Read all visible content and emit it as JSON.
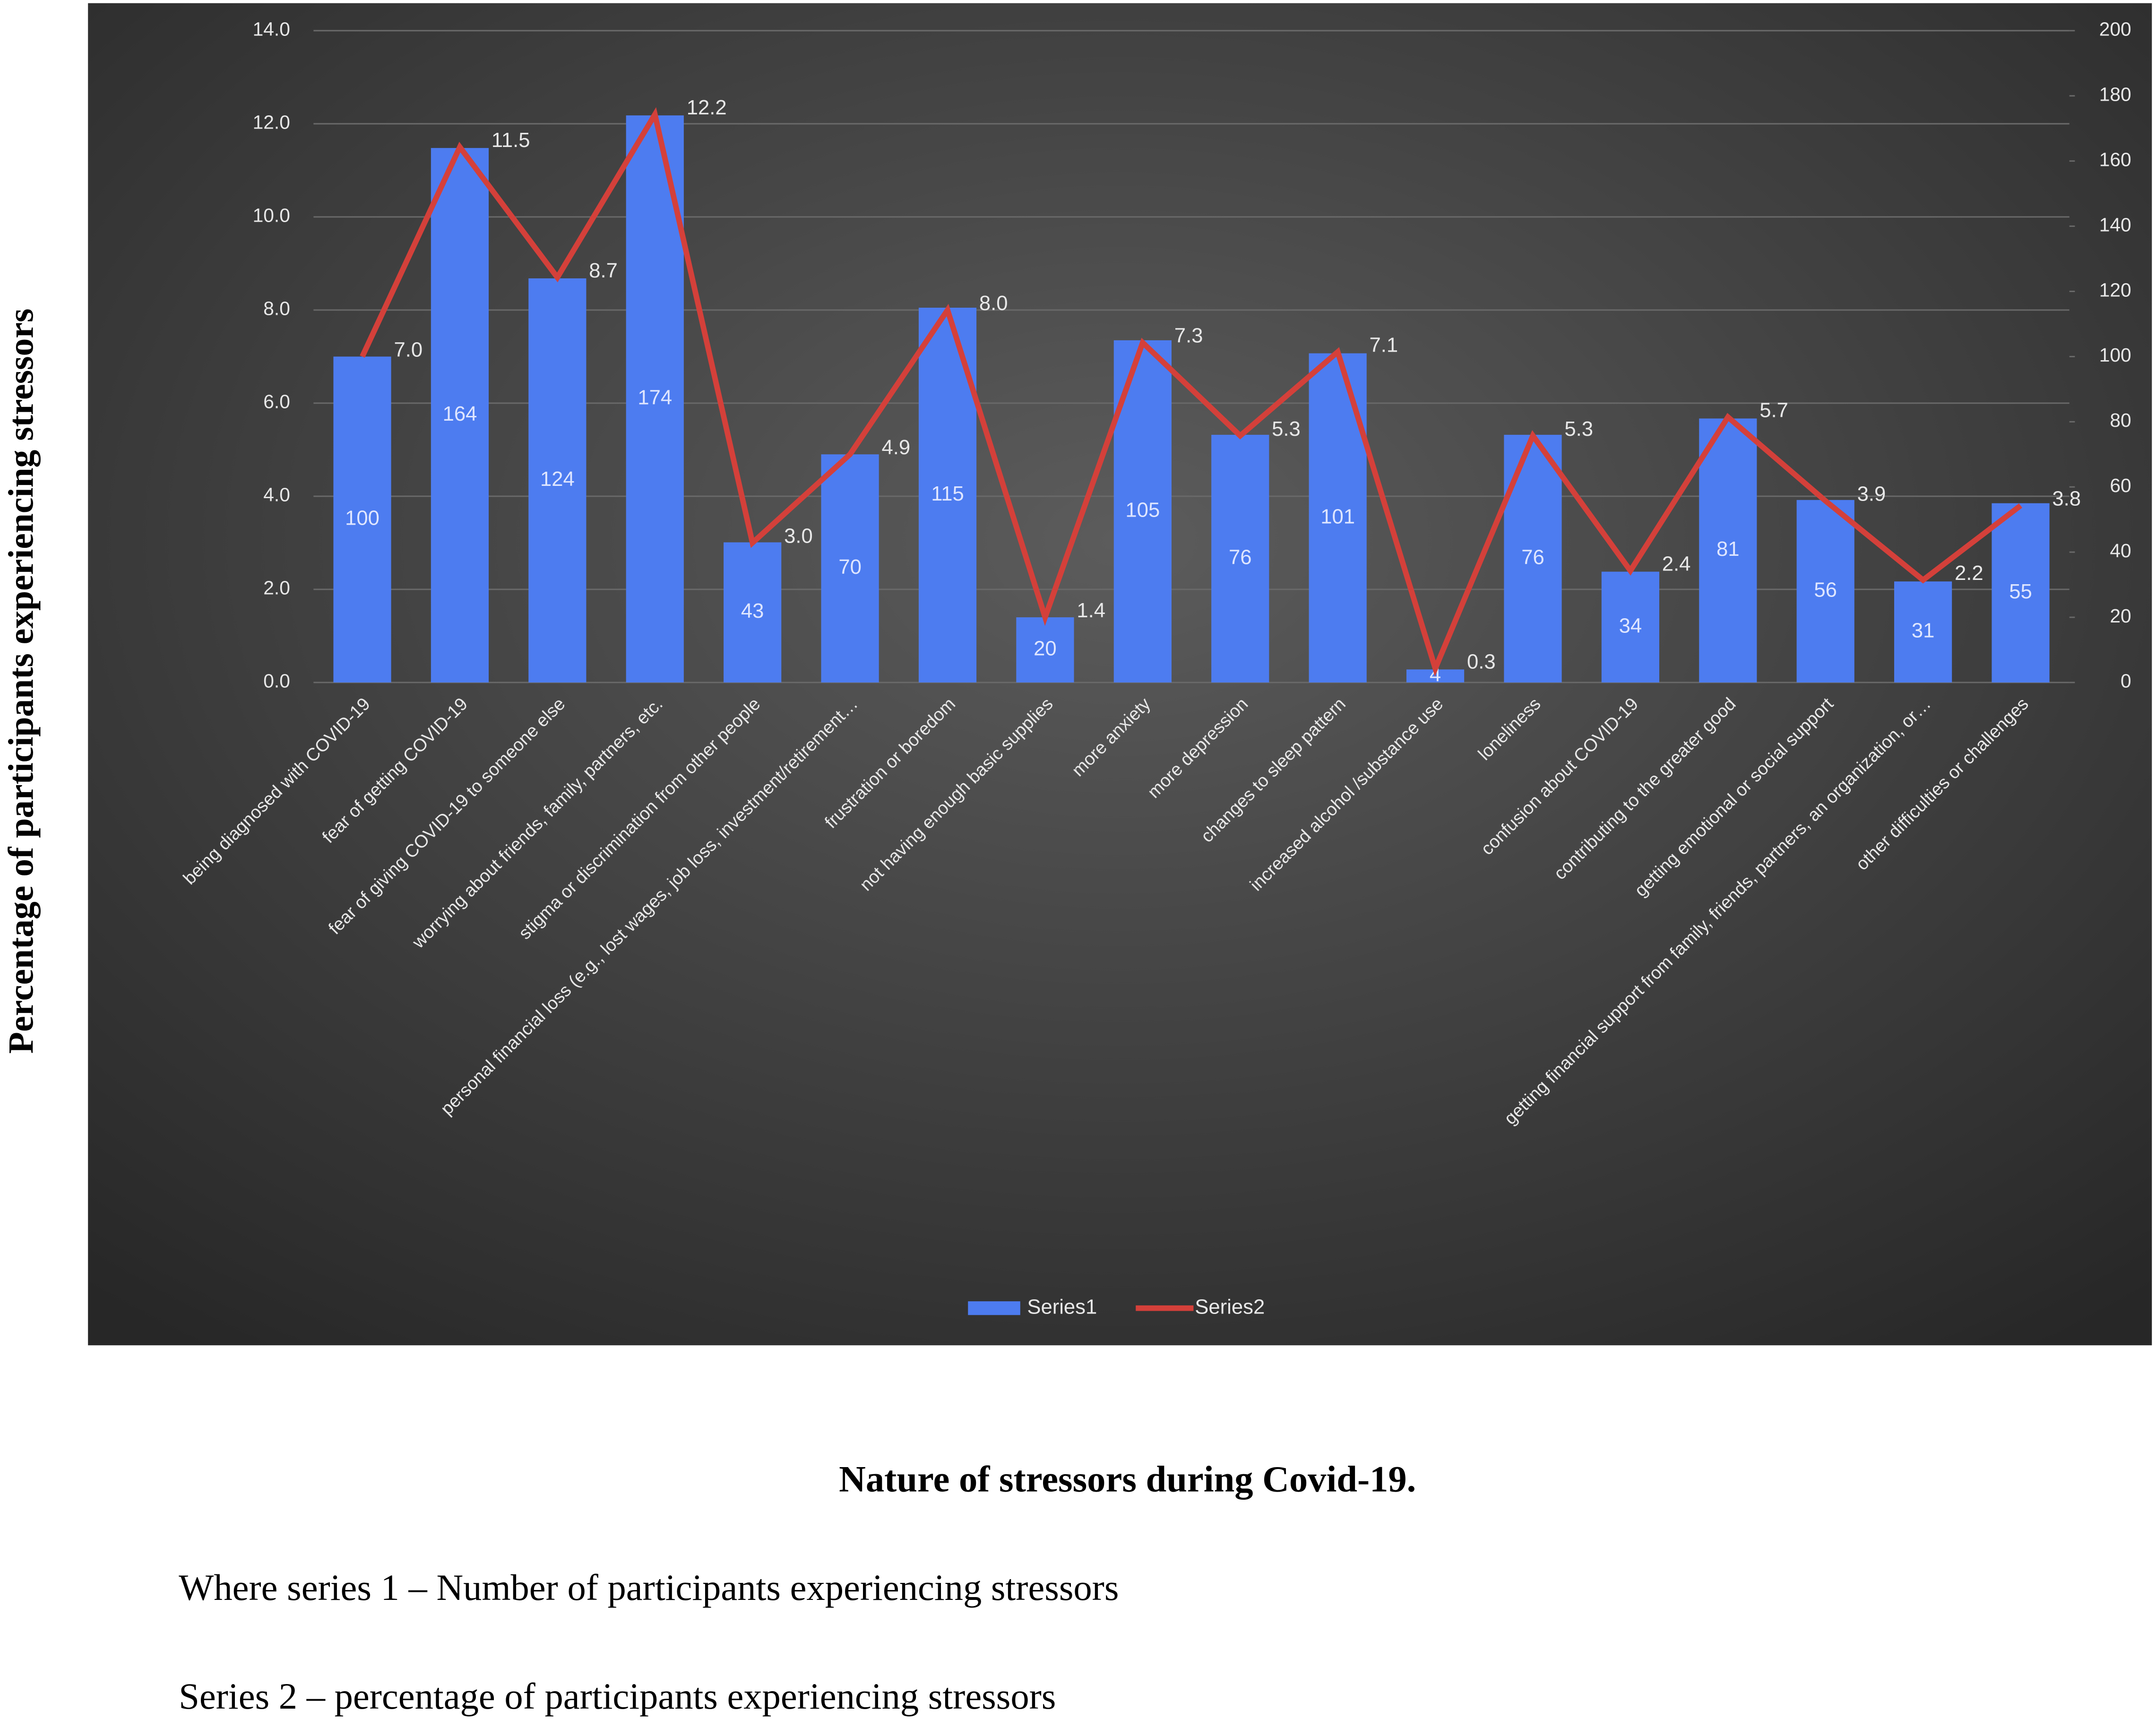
{
  "chart_data": {
    "type": "bar",
    "y_label": "Percentage of participants experiencing stressors",
    "caption": "Nature of stressors during Covid-19.",
    "notes": [
      "Where series 1 – Number of participants experiencing stressors",
      "Series 2 – percentage of participants experiencing stressors"
    ],
    "categories": [
      "being diagnosed with COVID-19",
      "fear of getting COVID-19",
      "fear of giving COVID-19 to someone else",
      "worrying about friends, family, partners, etc.",
      "stigma or discrimination from other people",
      "personal financial loss (e.g., lost wages, job loss, investment/retirement…",
      "frustration or boredom",
      "not having enough basic supplies",
      "more anxiety",
      "more depression",
      "changes to  sleep pattern",
      "increased alcohol /substance use",
      "loneliness",
      "confusion about  COVID-19",
      "contributing to the greater good",
      "getting emotional or social support",
      "getting financial support from family, friends, partners, an organization, or…",
      "other difficulties or challenges"
    ],
    "series": [
      {
        "name": "Series1",
        "type": "bar",
        "axis": "y2",
        "color": "#4d7cf0",
        "values": [
          100,
          164,
          124,
          174,
          43,
          70,
          115,
          20,
          105,
          76,
          101,
          4,
          76,
          34,
          81,
          56,
          31,
          55
        ]
      },
      {
        "name": "Series2",
        "type": "line",
        "color": "#d4403a",
        "values": [
          7.0,
          11.5,
          8.7,
          12.2,
          3.0,
          4.9,
          8.0,
          1.4,
          7.3,
          5.3,
          7.1,
          0.3,
          5.3,
          2.4,
          5.7,
          3.9,
          2.2,
          3.8
        ],
        "value_labels": [
          "7.0",
          "11.5",
          "8.7",
          "12.2",
          "3.0",
          "4.9",
          "8.0",
          "1.4",
          "7.3",
          "5.3",
          "7.1",
          "0.3",
          "5.3",
          "2.4",
          "5.7",
          "3.9",
          "2.2",
          "3.8"
        ]
      }
    ],
    "ylim": [
      0,
      14
    ],
    "yticks": [
      {
        "value": 0,
        "label": "0.0"
      },
      {
        "value": 2,
        "label": "2.0"
      },
      {
        "value": 4,
        "label": "4.0"
      },
      {
        "value": 6,
        "label": "6.0"
      },
      {
        "value": 8,
        "label": "8.0"
      },
      {
        "value": 10,
        "label": "10.0"
      },
      {
        "value": 12,
        "label": "12.0"
      },
      {
        "value": 14,
        "label": "14.0"
      }
    ],
    "y2lim": [
      0,
      200
    ],
    "y2ticks": [
      0,
      20,
      40,
      60,
      80,
      100,
      120,
      140,
      160,
      180,
      200
    ],
    "grid": true,
    "legend": "bottom"
  }
}
